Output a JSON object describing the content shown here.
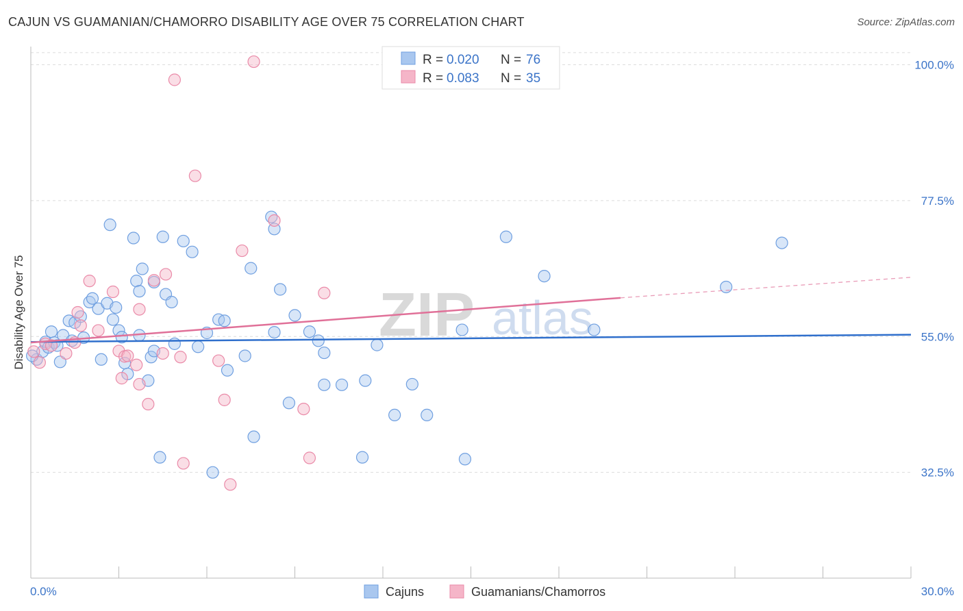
{
  "title": "CAJUN VS GUAMANIAN/CHAMORRO DISABILITY AGE OVER 75 CORRELATION CHART",
  "source": "Source: ZipAtlas.com",
  "watermark": {
    "zip": "ZIP",
    "atlas": "atlas"
  },
  "legend": {
    "rows": [
      {
        "r_label": "R =",
        "r_value": "0.020",
        "n_label": "N =",
        "n_value": "76",
        "color": "#a9c7ef"
      },
      {
        "r_label": "R =",
        "r_value": "0.083",
        "n_label": "N =",
        "n_value": "35",
        "color": "#f5b5c8"
      }
    ]
  },
  "bottom_legend": [
    {
      "label": "Cajuns",
      "color": "#a9c7ef"
    },
    {
      "label": "Guamanians/Chamorros",
      "color": "#f5b5c8"
    }
  ],
  "chart_data": {
    "type": "scatter",
    "title": "CAJUN VS GUAMANIAN/CHAMORRO DISABILITY AGE OVER 75 CORRELATION CHART",
    "xlabel": "",
    "ylabel": "Disability Age Over 75",
    "xlim": [
      0,
      30
    ],
    "ylim": [
      15,
      103
    ],
    "x_tick_labels": [
      "0.0%",
      "30.0%"
    ],
    "y_ticks": [
      32.5,
      55.0,
      77.5,
      100.0
    ],
    "y_tick_labels": [
      "32.5%",
      "55.0%",
      "77.5%",
      "100.0%"
    ],
    "grid": true,
    "series": [
      {
        "name": "Cajuns",
        "color": "#6f9fe0",
        "fill": "#a9c7ef",
        "trend": {
          "x": [
            0,
            30
          ],
          "y": [
            54.1,
            55.3
          ],
          "color": "#2f6fcc"
        },
        "points": [
          [
            0.2,
            51.2
          ],
          [
            0.4,
            52.5
          ],
          [
            0.5,
            54.1
          ],
          [
            0.6,
            53.2
          ],
          [
            0.7,
            55.8
          ],
          [
            0.8,
            54.0
          ],
          [
            1.0,
            50.8
          ],
          [
            1.1,
            55.2
          ],
          [
            0.9,
            53.5
          ],
          [
            1.4,
            54.3
          ],
          [
            1.3,
            57.6
          ],
          [
            1.5,
            57.3
          ],
          [
            1.7,
            58.3
          ],
          [
            1.8,
            54.8
          ],
          [
            2.0,
            60.7
          ],
          [
            2.1,
            61.3
          ],
          [
            2.3,
            59.6
          ],
          [
            2.4,
            51.2
          ],
          [
            2.6,
            60.5
          ],
          [
            2.7,
            73.5
          ],
          [
            2.8,
            57.8
          ],
          [
            2.9,
            59.8
          ],
          [
            3.0,
            56.0
          ],
          [
            3.1,
            54.9
          ],
          [
            3.2,
            50.6
          ],
          [
            3.3,
            48.8
          ],
          [
            3.5,
            71.3
          ],
          [
            3.6,
            64.2
          ],
          [
            3.7,
            62.5
          ],
          [
            3.7,
            55.2
          ],
          [
            3.8,
            66.2
          ],
          [
            4.0,
            47.7
          ],
          [
            4.1,
            51.6
          ],
          [
            4.2,
            52.6
          ],
          [
            4.2,
            64.0
          ],
          [
            4.4,
            35.0
          ],
          [
            4.5,
            71.5
          ],
          [
            4.6,
            62.0
          ],
          [
            4.8,
            60.7
          ],
          [
            4.9,
            53.8
          ],
          [
            5.2,
            70.8
          ],
          [
            5.5,
            69.0
          ],
          [
            5.7,
            53.3
          ],
          [
            6.0,
            55.6
          ],
          [
            6.2,
            32.5
          ],
          [
            6.4,
            57.8
          ],
          [
            6.6,
            57.6
          ],
          [
            6.7,
            49.4
          ],
          [
            7.3,
            51.8
          ],
          [
            7.5,
            66.3
          ],
          [
            7.6,
            38.4
          ],
          [
            8.2,
            74.8
          ],
          [
            8.3,
            72.8
          ],
          [
            8.3,
            55.7
          ],
          [
            8.5,
            62.8
          ],
          [
            8.8,
            44.0
          ],
          [
            9.0,
            58.5
          ],
          [
            9.5,
            55.8
          ],
          [
            9.8,
            54.3
          ],
          [
            10.0,
            52.3
          ],
          [
            10.0,
            47.0
          ],
          [
            10.6,
            47.0
          ],
          [
            11.3,
            35.0
          ],
          [
            11.4,
            47.7
          ],
          [
            11.8,
            53.6
          ],
          [
            12.4,
            42.0
          ],
          [
            13.0,
            47.1
          ],
          [
            13.5,
            42.0
          ],
          [
            14.7,
            56.1
          ],
          [
            14.8,
            34.7
          ],
          [
            16.2,
            71.5
          ],
          [
            17.5,
            65.0
          ],
          [
            19.2,
            56.1
          ],
          [
            23.7,
            63.2
          ],
          [
            25.6,
            70.5
          ],
          [
            0.05,
            51.8
          ]
        ]
      },
      {
        "name": "Guamanians/Chamorros",
        "color": "#ea8aa8",
        "fill": "#f5b5c8",
        "trend": {
          "x": [
            0,
            20.1
          ],
          "y": [
            54.0,
            61.4
          ],
          "color": "#e07098",
          "dash_to": [
            30,
            64.8
          ]
        },
        "points": [
          [
            0.1,
            52.5
          ],
          [
            0.3,
            50.7
          ],
          [
            0.5,
            53.8
          ],
          [
            0.7,
            53.5
          ],
          [
            1.2,
            52.2
          ],
          [
            1.5,
            54.0
          ],
          [
            1.6,
            59.0
          ],
          [
            1.7,
            56.8
          ],
          [
            2.0,
            64.2
          ],
          [
            2.3,
            56.0
          ],
          [
            2.8,
            62.4
          ],
          [
            3.0,
            52.6
          ],
          [
            3.1,
            48.1
          ],
          [
            3.2,
            51.7
          ],
          [
            3.3,
            51.8
          ],
          [
            3.6,
            50.3
          ],
          [
            3.7,
            47.1
          ],
          [
            3.7,
            59.5
          ],
          [
            4.0,
            43.8
          ],
          [
            4.2,
            64.3
          ],
          [
            4.5,
            52.2
          ],
          [
            4.6,
            65.3
          ],
          [
            4.9,
            97.5
          ],
          [
            5.1,
            51.6
          ],
          [
            5.2,
            34.0
          ],
          [
            5.6,
            81.6
          ],
          [
            6.4,
            51.0
          ],
          [
            6.6,
            44.5
          ],
          [
            6.8,
            30.5
          ],
          [
            7.2,
            69.2
          ],
          [
            7.6,
            100.5
          ],
          [
            8.3,
            74.2
          ],
          [
            9.3,
            43.0
          ],
          [
            9.5,
            34.9
          ],
          [
            10.0,
            62.2
          ]
        ]
      }
    ]
  }
}
